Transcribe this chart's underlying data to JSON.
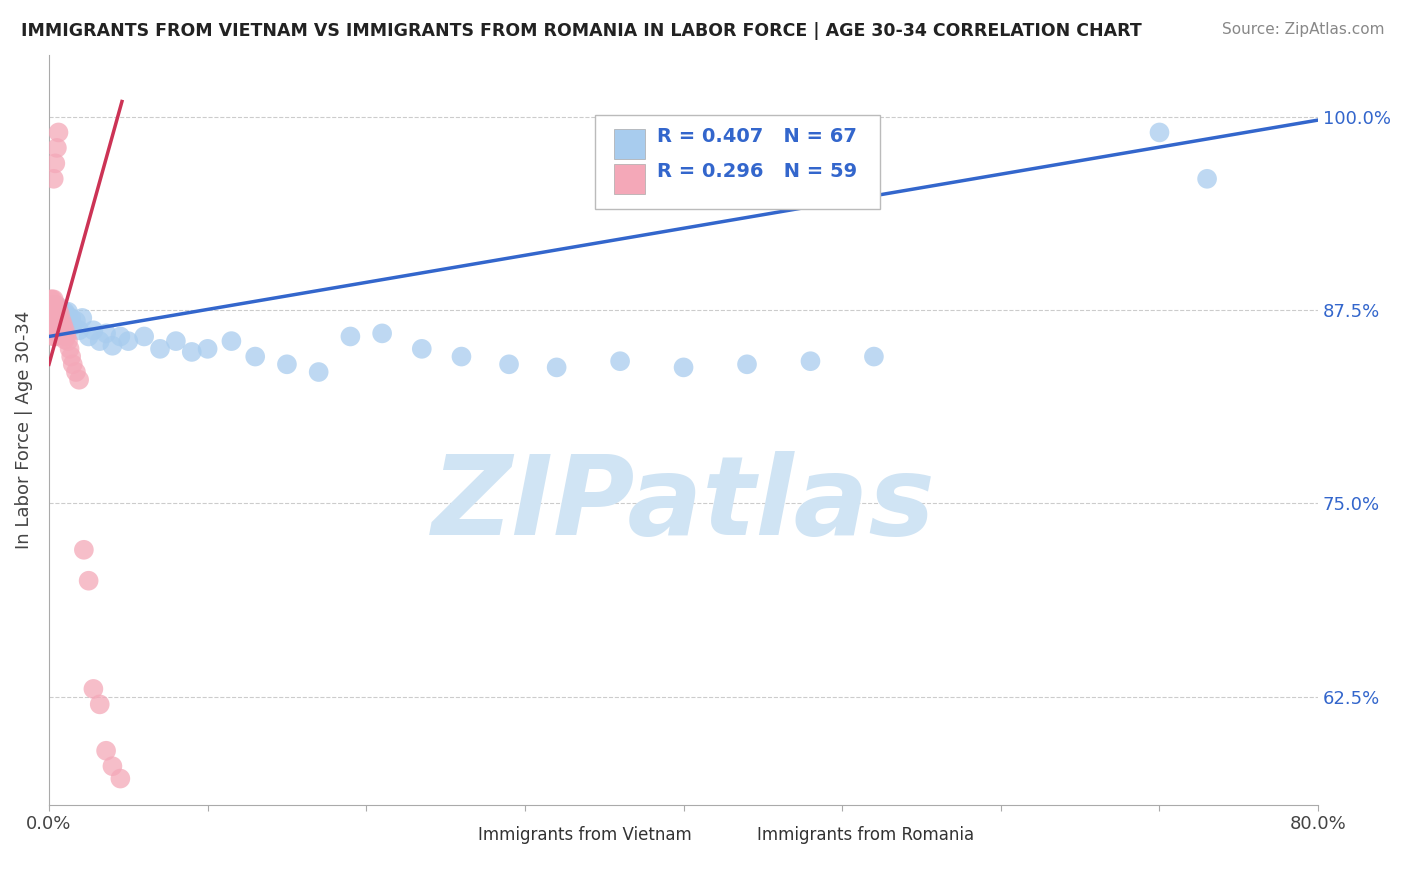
{
  "title": "IMMIGRANTS FROM VIETNAM VS IMMIGRANTS FROM ROMANIA IN LABOR FORCE | AGE 30-34 CORRELATION CHART",
  "source": "Source: ZipAtlas.com",
  "ylabel": "In Labor Force | Age 30-34",
  "xlim": [
    0.0,
    0.8
  ],
  "ylim": [
    0.555,
    1.04
  ],
  "yticks": [
    0.625,
    0.75,
    0.875,
    1.0
  ],
  "yticklabels": [
    "62.5%",
    "75.0%",
    "87.5%",
    "100.0%"
  ],
  "vietnam_color": "#A8CCEE",
  "romania_color": "#F4A8B8",
  "vietnam_line_color": "#3366CC",
  "romania_line_color": "#CC3355",
  "legend_R_vietnam": "R = 0.407",
  "legend_N_vietnam": "N = 67",
  "legend_R_romania": "R = 0.296",
  "legend_N_romania": "N = 59",
  "watermark": "ZIPatlas",
  "watermark_color": "#D0E4F4",
  "background_color": "#FFFFFF",
  "vietnam_x": [
    0.001,
    0.002,
    0.002,
    0.002,
    0.003,
    0.003,
    0.003,
    0.003,
    0.004,
    0.004,
    0.004,
    0.004,
    0.004,
    0.005,
    0.005,
    0.005,
    0.005,
    0.005,
    0.006,
    0.006,
    0.006,
    0.007,
    0.007,
    0.007,
    0.008,
    0.008,
    0.009,
    0.009,
    0.01,
    0.01,
    0.011,
    0.012,
    0.013,
    0.014,
    0.015,
    0.017,
    0.019,
    0.021,
    0.025,
    0.028,
    0.032,
    0.036,
    0.04,
    0.045,
    0.05,
    0.06,
    0.07,
    0.08,
    0.09,
    0.1,
    0.115,
    0.13,
    0.15,
    0.17,
    0.19,
    0.21,
    0.235,
    0.26,
    0.29,
    0.32,
    0.36,
    0.4,
    0.44,
    0.48,
    0.52,
    0.7,
    0.73
  ],
  "vietnam_y": [
    0.87,
    0.875,
    0.872,
    0.868,
    0.878,
    0.874,
    0.87,
    0.866,
    0.878,
    0.874,
    0.872,
    0.869,
    0.866,
    0.878,
    0.875,
    0.872,
    0.869,
    0.866,
    0.876,
    0.873,
    0.87,
    0.875,
    0.872,
    0.869,
    0.873,
    0.87,
    0.872,
    0.869,
    0.874,
    0.87,
    0.872,
    0.874,
    0.868,
    0.87,
    0.865,
    0.868,
    0.862,
    0.87,
    0.858,
    0.862,
    0.855,
    0.86,
    0.852,
    0.858,
    0.855,
    0.858,
    0.85,
    0.855,
    0.848,
    0.85,
    0.855,
    0.845,
    0.84,
    0.835,
    0.858,
    0.86,
    0.85,
    0.845,
    0.84,
    0.838,
    0.842,
    0.838,
    0.84,
    0.842,
    0.845,
    0.99,
    0.96
  ],
  "romania_x": [
    0.001,
    0.001,
    0.001,
    0.001,
    0.001,
    0.002,
    0.002,
    0.002,
    0.002,
    0.002,
    0.002,
    0.003,
    0.003,
    0.003,
    0.003,
    0.003,
    0.003,
    0.003,
    0.004,
    0.004,
    0.004,
    0.004,
    0.004,
    0.004,
    0.005,
    0.005,
    0.005,
    0.005,
    0.006,
    0.006,
    0.006,
    0.006,
    0.007,
    0.007,
    0.007,
    0.008,
    0.008,
    0.009,
    0.009,
    0.01,
    0.01,
    0.011,
    0.012,
    0.013,
    0.014,
    0.015,
    0.017,
    0.019,
    0.022,
    0.025,
    0.028,
    0.032,
    0.036,
    0.04,
    0.045,
    0.003,
    0.004,
    0.005,
    0.006
  ],
  "romania_y": [
    0.882,
    0.878,
    0.874,
    0.87,
    0.866,
    0.882,
    0.878,
    0.875,
    0.872,
    0.868,
    0.864,
    0.882,
    0.878,
    0.874,
    0.87,
    0.866,
    0.862,
    0.858,
    0.878,
    0.874,
    0.87,
    0.866,
    0.862,
    0.858,
    0.878,
    0.872,
    0.866,
    0.862,
    0.875,
    0.87,
    0.865,
    0.86,
    0.872,
    0.866,
    0.86,
    0.868,
    0.862,
    0.865,
    0.859,
    0.862,
    0.856,
    0.858,
    0.855,
    0.85,
    0.845,
    0.84,
    0.835,
    0.83,
    0.72,
    0.7,
    0.63,
    0.62,
    0.59,
    0.58,
    0.572,
    0.96,
    0.97,
    0.98,
    0.99
  ],
  "vietnam_line_x": [
    0.0,
    0.8
  ],
  "vietnam_line_y": [
    0.858,
    0.998
  ],
  "romania_line_x": [
    0.0,
    0.046
  ],
  "romania_line_y": [
    0.84,
    1.01
  ]
}
